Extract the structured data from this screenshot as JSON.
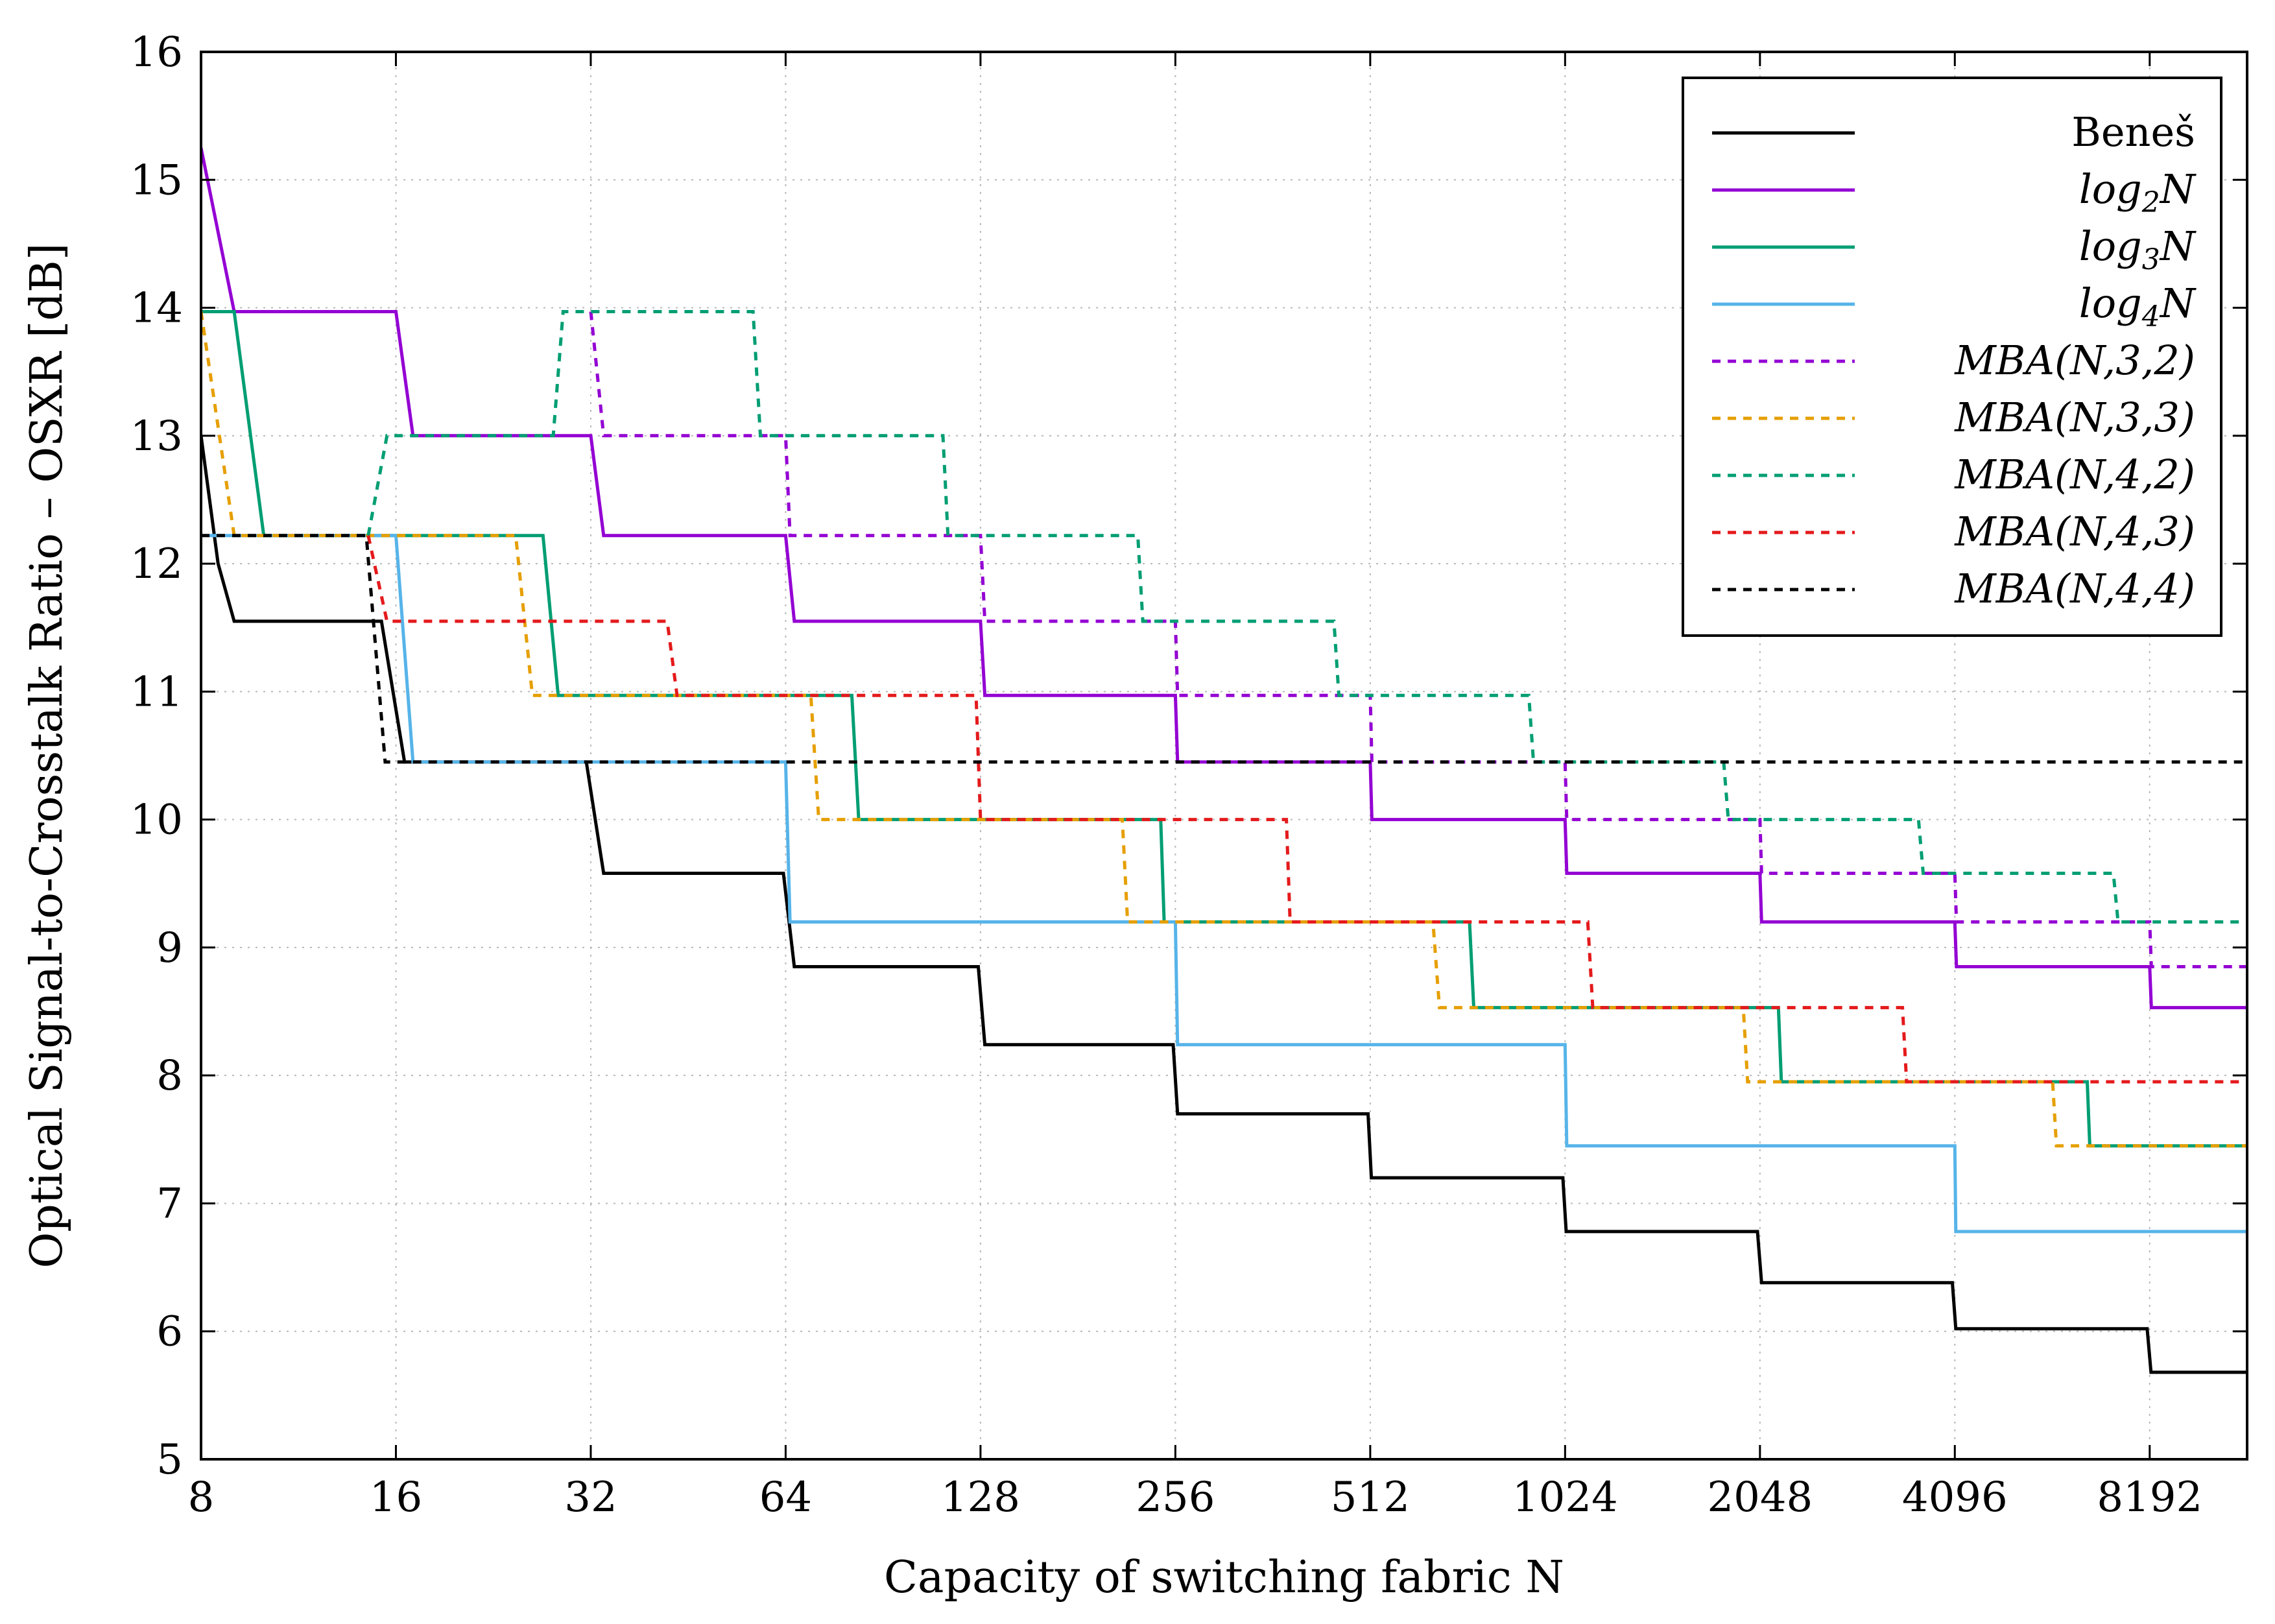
{
  "chart_data": {
    "type": "line",
    "xlabel": "Capacity of switching fabric N",
    "ylabel": "Optical Signal-to-Crosstalk Ratio – OSXR [dB]",
    "x_scale": "log2",
    "xlim": [
      8,
      11585
    ],
    "ylim": [
      5,
      16
    ],
    "grid": true,
    "legend_position": "top-right",
    "x_ticks": [
      {
        "value": 8,
        "label": "8"
      },
      {
        "value": 16,
        "label": "16"
      },
      {
        "value": 32,
        "label": "32"
      },
      {
        "value": 64,
        "label": "64"
      },
      {
        "value": 128,
        "label": "128"
      },
      {
        "value": 256,
        "label": "256"
      },
      {
        "value": 512,
        "label": "512"
      },
      {
        "value": 1024,
        "label": "1024"
      },
      {
        "value": 2048,
        "label": "2048"
      },
      {
        "value": 4096,
        "label": "4096"
      },
      {
        "value": 8192,
        "label": "8192"
      }
    ],
    "y_ticks": [
      {
        "value": 5,
        "label": "5"
      },
      {
        "value": 6,
        "label": "6"
      },
      {
        "value": 7,
        "label": "7"
      },
      {
        "value": 8,
        "label": "8"
      },
      {
        "value": 9,
        "label": "9"
      },
      {
        "value": 10,
        "label": "10"
      },
      {
        "value": 11,
        "label": "11"
      },
      {
        "value": 12,
        "label": "12"
      },
      {
        "value": 13,
        "label": "13"
      },
      {
        "value": 14,
        "label": "14"
      },
      {
        "value": 15,
        "label": "15"
      },
      {
        "value": 16,
        "label": "16"
      }
    ],
    "series": [
      {
        "id": "benes",
        "name": "Beneš",
        "legend_main": "Beneš",
        "legend_sub": "",
        "legend_tail": "",
        "italic": false,
        "color": "#000000",
        "dashed": false,
        "points": [
          [
            8,
            13.0
          ],
          [
            8.5,
            12.0
          ],
          [
            9,
            11.55
          ],
          [
            15.2,
            11.55
          ],
          [
            16.5,
            10.45
          ],
          [
            31.5,
            10.45
          ],
          [
            33.5,
            9.58
          ],
          [
            63.5,
            9.58
          ],
          [
            66,
            8.85
          ],
          [
            127,
            8.85
          ],
          [
            130,
            8.24
          ],
          [
            254,
            8.24
          ],
          [
            258,
            7.7
          ],
          [
            508,
            7.7
          ],
          [
            514,
            7.2
          ],
          [
            1016,
            7.2
          ],
          [
            1028,
            6.78
          ],
          [
            2030,
            6.78
          ],
          [
            2060,
            6.38
          ],
          [
            4060,
            6.38
          ],
          [
            4110,
            6.02
          ],
          [
            8120,
            6.02
          ],
          [
            8230,
            5.68
          ],
          [
            11585,
            5.68
          ]
        ]
      },
      {
        "id": "log2",
        "name": "log2N",
        "legend_main": "log",
        "legend_sub": "2",
        "legend_tail": "N",
        "italic": true,
        "color": "#9400d3",
        "dashed": false,
        "points": [
          [
            8,
            15.25
          ],
          [
            9,
            13.97
          ],
          [
            16,
            13.97
          ],
          [
            17,
            13.0
          ],
          [
            32,
            13.0
          ],
          [
            33.5,
            12.22
          ],
          [
            64,
            12.22
          ],
          [
            66,
            11.55
          ],
          [
            128,
            11.55
          ],
          [
            130,
            10.97
          ],
          [
            256,
            10.97
          ],
          [
            258,
            10.45
          ],
          [
            512,
            10.45
          ],
          [
            515,
            10.0
          ],
          [
            1024,
            10.0
          ],
          [
            1030,
            9.58
          ],
          [
            2048,
            9.58
          ],
          [
            2060,
            9.2
          ],
          [
            4096,
            9.2
          ],
          [
            4120,
            8.85
          ],
          [
            8192,
            8.85
          ],
          [
            8240,
            8.53
          ],
          [
            11585,
            8.53
          ]
        ]
      },
      {
        "id": "log3",
        "name": "log3N",
        "legend_main": "log",
        "legend_sub": "3",
        "legend_tail": "N",
        "italic": true,
        "color": "#009e73",
        "dashed": false,
        "points": [
          [
            8,
            13.97
          ],
          [
            9,
            13.97
          ],
          [
            10,
            12.22
          ],
          [
            27,
            12.22
          ],
          [
            28.5,
            10.97
          ],
          [
            81,
            10.97
          ],
          [
            83,
            10.0
          ],
          [
            243,
            10.0
          ],
          [
            246,
            9.2
          ],
          [
            729,
            9.2
          ],
          [
            740,
            8.53
          ],
          [
            2187,
            8.53
          ],
          [
            2210,
            7.95
          ],
          [
            6561,
            7.95
          ],
          [
            6620,
            7.45
          ],
          [
            11585,
            7.45
          ]
        ]
      },
      {
        "id": "log4",
        "name": "log4N",
        "legend_main": "log",
        "legend_sub": "4",
        "legend_tail": "N",
        "italic": true,
        "color": "#56b4e9",
        "dashed": false,
        "points": [
          [
            8,
            12.22
          ],
          [
            16,
            12.22
          ],
          [
            17,
            10.45
          ],
          [
            64,
            10.45
          ],
          [
            65,
            9.2
          ],
          [
            256,
            9.2
          ],
          [
            258,
            8.24
          ],
          [
            1024,
            8.24
          ],
          [
            1030,
            7.45
          ],
          [
            4096,
            7.45
          ],
          [
            4110,
            6.78
          ],
          [
            11585,
            6.78
          ]
        ]
      },
      {
        "id": "mba432",
        "name": "MBA(N,3,2)",
        "legend_main": "MBA(N,3,2)",
        "legend_sub": "",
        "legend_tail": "",
        "italic": true,
        "color": "#9400d3",
        "dashed": true,
        "points": [
          [
            32,
            13.97
          ],
          [
            33.5,
            13.0
          ],
          [
            64,
            13.0
          ],
          [
            65,
            12.22
          ],
          [
            128,
            12.22
          ],
          [
            130,
            11.55
          ],
          [
            256,
            11.55
          ],
          [
            258,
            10.97
          ],
          [
            512,
            10.97
          ],
          [
            515,
            10.45
          ],
          [
            1024,
            10.45
          ],
          [
            1030,
            10.0
          ],
          [
            2048,
            10.0
          ],
          [
            2060,
            9.58
          ],
          [
            4096,
            9.58
          ],
          [
            4120,
            9.2
          ],
          [
            8192,
            9.2
          ],
          [
            8240,
            8.85
          ],
          [
            11585,
            8.85
          ]
        ]
      },
      {
        "id": "mba333",
        "name": "MBA(N,3,3)",
        "legend_main": "MBA(N,3,3)",
        "legend_sub": "",
        "legend_tail": "",
        "italic": true,
        "color": "#e69f00",
        "dashed": true,
        "points": [
          [
            8,
            13.97
          ],
          [
            9,
            12.22
          ],
          [
            24.5,
            12.22
          ],
          [
            26,
            10.97
          ],
          [
            70,
            10.97
          ],
          [
            72,
            10.0
          ],
          [
            212,
            10.0
          ],
          [
            216,
            9.2
          ],
          [
            640,
            9.2
          ],
          [
            655,
            8.53
          ],
          [
            1930,
            8.53
          ],
          [
            1960,
            7.95
          ],
          [
            5800,
            7.95
          ],
          [
            5880,
            7.45
          ],
          [
            11585,
            7.45
          ]
        ]
      },
      {
        "id": "mba442",
        "name": "MBA(N,4,2)",
        "legend_main": "MBA(N,4,2)",
        "legend_sub": "",
        "legend_tail": "",
        "italic": true,
        "color": "#009e73",
        "dashed": true,
        "points": [
          [
            14.5,
            12.22
          ],
          [
            15.5,
            13.0
          ],
          [
            28,
            13.0
          ],
          [
            29,
            13.97
          ],
          [
            57,
            13.97
          ],
          [
            58.5,
            13.0
          ],
          [
            112,
            13.0
          ],
          [
            114,
            12.22
          ],
          [
            224,
            12.22
          ],
          [
            228,
            11.55
          ],
          [
            450,
            11.55
          ],
          [
            458,
            10.97
          ],
          [
            900,
            10.97
          ],
          [
            915,
            10.45
          ],
          [
            1800,
            10.45
          ],
          [
            1830,
            10.0
          ],
          [
            3600,
            10.0
          ],
          [
            3660,
            9.58
          ],
          [
            7200,
            9.58
          ],
          [
            7320,
            9.2
          ],
          [
            11585,
            9.2
          ]
        ]
      },
      {
        "id": "mba443",
        "name": "MBA(N,4,3)",
        "legend_main": "MBA(N,4,3)",
        "legend_sub": "",
        "legend_tail": "",
        "italic": true,
        "color": "#e41a1c",
        "dashed": true,
        "points": [
          [
            14.5,
            12.22
          ],
          [
            15.5,
            11.55
          ],
          [
            42,
            11.55
          ],
          [
            43.5,
            10.97
          ],
          [
            126,
            10.97
          ],
          [
            128,
            10.0
          ],
          [
            380,
            10.0
          ],
          [
            385,
            9.2
          ],
          [
            1110,
            9.2
          ],
          [
            1130,
            8.53
          ],
          [
            3400,
            8.53
          ],
          [
            3450,
            7.95
          ],
          [
            11585,
            7.95
          ]
        ]
      },
      {
        "id": "mba444",
        "name": "MBA(N,4,4)",
        "legend_main": "MBA(N,4,4)",
        "legend_sub": "",
        "legend_tail": "",
        "italic": true,
        "color": "#000000",
        "dashed": true,
        "points": [
          [
            8,
            12.22
          ],
          [
            14.4,
            12.22
          ],
          [
            15.4,
            10.45
          ],
          [
            11585,
            10.45
          ]
        ]
      }
    ]
  }
}
